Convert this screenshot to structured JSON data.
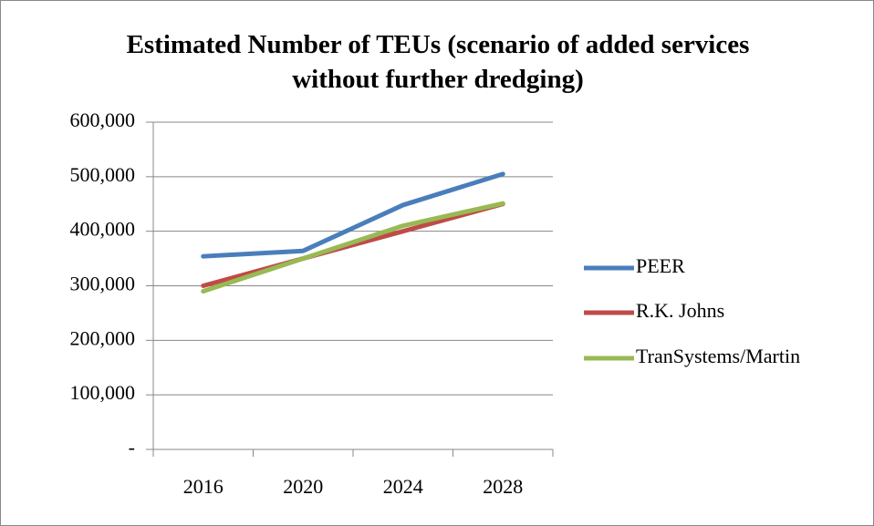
{
  "chart_data": {
    "type": "line",
    "title": "Estimated Number of TEUs (scenario of added services without further dredging)",
    "categories": [
      "2016",
      "2020",
      "2024",
      "2028"
    ],
    "series": [
      {
        "name": "PEER",
        "color": "#4a7ebb",
        "values": [
          354000,
          364000,
          448000,
          505000
        ]
      },
      {
        "name": "R.K. Johns",
        "color": "#be4b48",
        "values": [
          300000,
          350000,
          400000,
          450000
        ]
      },
      {
        "name": "TranSystems/Martin",
        "color": "#98b954",
        "values": [
          290000,
          350000,
          410000,
          451000
        ]
      }
    ],
    "ylim": [
      0,
      600000
    ],
    "yticks": [
      {
        "value": 0,
        "label": "-"
      },
      {
        "value": 100000,
        "label": "100,000"
      },
      {
        "value": 200000,
        "label": "200,000"
      },
      {
        "value": 300000,
        "label": "300,000"
      },
      {
        "value": 400000,
        "label": "400,000"
      },
      {
        "value": 500000,
        "label": "500,000"
      },
      {
        "value": 600000,
        "label": "600,000"
      }
    ],
    "grid": true,
    "legend": "right"
  }
}
